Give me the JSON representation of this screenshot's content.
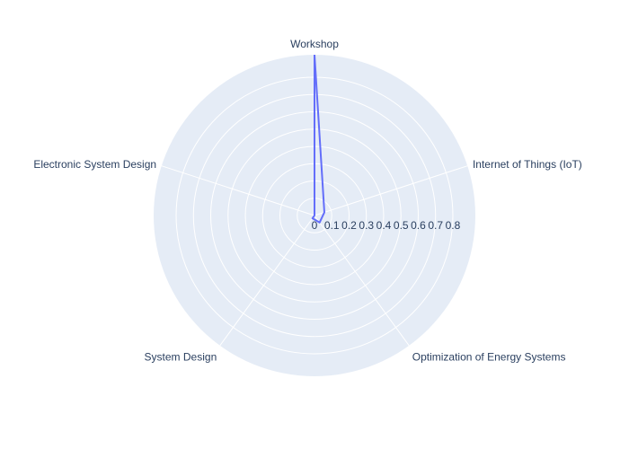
{
  "chart_data": {
    "type": "radar",
    "categories": [
      "Workshop",
      "Internet of Things (IoT)",
      "Optimization of Energy Systems",
      "System Design",
      "Electronic System Design"
    ],
    "values": [
      0.93,
      0.06,
      0.05,
      0.02,
      0.0
    ],
    "radial_ticks": [
      "0",
      "0.1",
      "0.2",
      "0.3",
      "0.4",
      "0.5",
      "0.6",
      "0.7",
      "0.8"
    ],
    "radial_range": [
      0,
      0.93
    ],
    "grid": true,
    "colors": {
      "background": "#e5ecf6",
      "grid": "#ffffff",
      "line": "#636efa",
      "text": "#2a3f5f"
    }
  }
}
